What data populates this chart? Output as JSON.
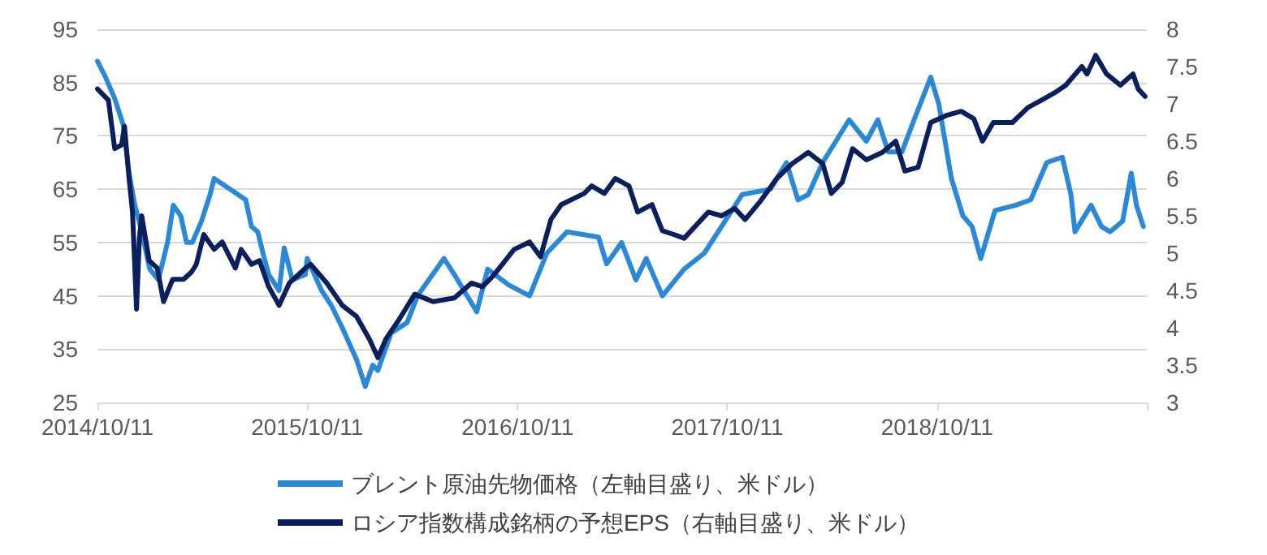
{
  "chart_data": {
    "type": "line",
    "legend": "bottom",
    "grid": "y",
    "marker": "none",
    "line_style": "solid",
    "xlim": [
      "2014-10-11",
      "2019-10-11"
    ],
    "xticks": [
      {
        "value": "2014-10-11",
        "label": "2014/10/11"
      },
      {
        "value": "2015-10-11",
        "label": "2015/10/11"
      },
      {
        "value": "2016-10-11",
        "label": "2016/10/11"
      },
      {
        "value": "2017-10-11",
        "label": "2017/10/11"
      },
      {
        "value": "2018-10-11",
        "label": "2018/10/11"
      },
      {
        "value": "2019-10-11",
        "label": null
      }
    ],
    "ylim": [
      25,
      95
    ],
    "yticks": [
      25,
      35,
      45,
      55,
      65,
      75,
      85,
      95
    ],
    "y2lim": [
      3,
      8
    ],
    "y2ticks": [
      3,
      3.5,
      4,
      4.5,
      5,
      5.5,
      6,
      6.5,
      7,
      7.5,
      8
    ],
    "series": [
      {
        "name": "ブレント原油先物価格（左軸目盛り、米ドル）",
        "color": "#2a88d8",
        "x": [
          "2014-10-11",
          "2014-10-25",
          "2014-11-10",
          "2014-11-25",
          "2014-12-05",
          "2014-12-15",
          "2014-12-25",
          "2015-01-10",
          "2015-01-25",
          "2015-02-10",
          "2015-02-20",
          "2015-03-05",
          "2015-03-15",
          "2015-03-25",
          "2015-04-10",
          "2015-04-25",
          "2015-05-02",
          "2015-05-30",
          "2015-06-26",
          "2015-07-06",
          "2015-07-17",
          "2015-07-26",
          "2015-08-05",
          "2015-08-23",
          "2015-09-01",
          "2015-09-15",
          "2015-10-08",
          "2015-10-11",
          "2015-11-05",
          "2015-11-23",
          "2015-12-11",
          "2016-01-05",
          "2016-01-20",
          "2016-02-02",
          "2016-02-11",
          "2016-03-05",
          "2016-04-02",
          "2016-04-20",
          "2016-06-05",
          "2016-06-23",
          "2016-08-01",
          "2016-08-20",
          "2016-09-26",
          "2016-11-01",
          "2016-12-01",
          "2017-01-05",
          "2017-03-01",
          "2017-03-15",
          "2017-04-10",
          "2017-05-05",
          "2017-05-23",
          "2017-06-20",
          "2017-07-28",
          "2017-09-01",
          "2017-10-01",
          "2017-11-06",
          "2017-12-25",
          "2018-01-22",
          "2018-02-11",
          "2018-03-01",
          "2018-03-26",
          "2018-05-11",
          "2018-06-10",
          "2018-06-30",
          "2018-07-18",
          "2018-08-11",
          "2018-09-01",
          "2018-09-30",
          "2018-10-14",
          "2018-11-05",
          "2018-11-25",
          "2018-12-11",
          "2018-12-26",
          "2019-01-20",
          "2019-02-25",
          "2019-03-23",
          "2019-04-20",
          "2019-05-17",
          "2019-06-01",
          "2019-06-08",
          "2019-07-06",
          "2019-07-24",
          "2019-08-08",
          "2019-08-30",
          "2019-09-14",
          "2019-09-23",
          "2019-10-05"
        ],
        "values": [
          89,
          86,
          82,
          77,
          68,
          62,
          58,
          50,
          48,
          55,
          62,
          60,
          55,
          55,
          59,
          64,
          67,
          65,
          63,
          58,
          57,
          53,
          49,
          46,
          54,
          48,
          49,
          52,
          46,
          43,
          39,
          33,
          28,
          32,
          31,
          38,
          40,
          45,
          52,
          49,
          42,
          50,
          47,
          45,
          53,
          57,
          56,
          51,
          55,
          48,
          52,
          45,
          50,
          53,
          58,
          64,
          65,
          70,
          63,
          64,
          70,
          78,
          74,
          78,
          72,
          72,
          78,
          86,
          81,
          67,
          60,
          58,
          52,
          61,
          62,
          63,
          70,
          71,
          64,
          57,
          62,
          58,
          57,
          59,
          68,
          62,
          58
        ]
      },
      {
        "name": "ロシア指数構成銘柄の予想EPS（右軸目盛り、米ドル）",
        "color": "#0b1f5c",
        "axis": "y2",
        "x": [
          "2014-10-11",
          "2014-10-30",
          "2014-11-10",
          "2014-11-22",
          "2014-11-27",
          "2014-12-05",
          "2014-12-11",
          "2014-12-18",
          "2014-12-23",
          "2014-12-27",
          "2015-01-09",
          "2015-01-23",
          "2015-02-03",
          "2015-02-19",
          "2015-03-10",
          "2015-03-24",
          "2015-04-01",
          "2015-04-14",
          "2015-05-02",
          "2015-05-16",
          "2015-06-08",
          "2015-06-18",
          "2015-07-06",
          "2015-07-20",
          "2015-08-05",
          "2015-08-23",
          "2015-09-10",
          "2015-10-08",
          "2015-10-17",
          "2015-11-14",
          "2015-12-11",
          "2016-01-05",
          "2016-01-27",
          "2016-02-11",
          "2016-02-25",
          "2016-03-18",
          "2016-04-15",
          "2016-05-17",
          "2016-06-23",
          "2016-07-23",
          "2016-08-11",
          "2016-08-30",
          "2016-10-05",
          "2016-11-01",
          "2016-11-20",
          "2016-12-08",
          "2016-12-26",
          "2017-02-04",
          "2017-02-17",
          "2017-03-11",
          "2017-03-30",
          "2017-04-23",
          "2017-05-08",
          "2017-06-02",
          "2017-06-20",
          "2017-07-10",
          "2017-07-28",
          "2017-09-08",
          "2017-10-01",
          "2017-10-24",
          "2017-11-11",
          "2017-12-08",
          "2018-01-05",
          "2018-02-01",
          "2018-03-01",
          "2018-03-26",
          "2018-04-10",
          "2018-04-29",
          "2018-05-17",
          "2018-06-10",
          "2018-07-08",
          "2018-07-31",
          "2018-08-16",
          "2018-09-08",
          "2018-09-30",
          "2018-10-29",
          "2018-11-22",
          "2018-12-14",
          "2018-12-29",
          "2019-01-17",
          "2019-02-19",
          "2019-03-18",
          "2019-04-11",
          "2019-05-04",
          "2019-05-23",
          "2019-06-20",
          "2019-06-29",
          "2019-07-14",
          "2019-08-02",
          "2019-08-26",
          "2019-09-17",
          "2019-09-26",
          "2019-10-08"
        ],
        "values": [
          7.2,
          7.05,
          6.4,
          6.45,
          6.7,
          6.0,
          5.55,
          4.25,
          5.2,
          5.5,
          4.9,
          4.8,
          4.35,
          4.65,
          4.65,
          4.75,
          4.85,
          5.25,
          5.05,
          5.15,
          4.8,
          5.05,
          4.85,
          4.9,
          4.55,
          4.3,
          4.6,
          4.8,
          4.85,
          4.6,
          4.3,
          4.15,
          3.85,
          3.6,
          3.85,
          4.1,
          4.45,
          4.35,
          4.4,
          4.6,
          4.55,
          4.7,
          5.05,
          5.15,
          4.95,
          5.45,
          5.65,
          5.8,
          5.9,
          5.8,
          6.0,
          5.9,
          5.55,
          5.65,
          5.3,
          5.25,
          5.2,
          5.55,
          5.5,
          5.6,
          5.45,
          5.7,
          6.0,
          6.2,
          6.35,
          6.2,
          5.8,
          5.95,
          6.4,
          6.25,
          6.35,
          6.5,
          6.1,
          6.15,
          6.75,
          6.85,
          6.9,
          6.8,
          6.5,
          6.75,
          6.75,
          6.95,
          7.05,
          7.15,
          7.25,
          7.5,
          7.4,
          7.65,
          7.4,
          7.25,
          7.4,
          7.2,
          7.1
        ]
      }
    ]
  }
}
